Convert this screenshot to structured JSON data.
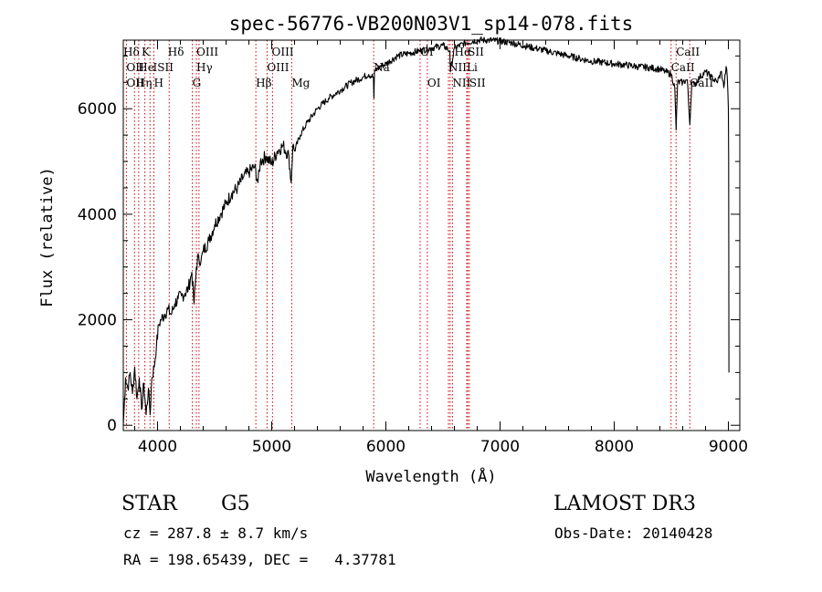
{
  "chart_data": {
    "type": "line",
    "title": "spec-56776-VB200N03V1_sp14-078.fits",
    "xlabel": "Wavelength (Å)",
    "ylabel": "Flux (relative)",
    "xlim": [
      3700,
      9100
    ],
    "ylim": [
      -100,
      7300
    ],
    "xticks": [
      4000,
      5000,
      6000,
      7000,
      8000,
      9000
    ],
    "yticks": [
      0,
      2000,
      4000,
      6000
    ],
    "x_minor_step": 200,
    "y_minor_step": 500,
    "grid": false,
    "line_color": "#000000",
    "marker_color": "#cc0000",
    "series": [
      {
        "x": [
          3700,
          3720,
          3740,
          3760,
          3780,
          3800,
          3820,
          3840,
          3860,
          3880,
          3900,
          3920,
          3935,
          3950,
          3970,
          3990,
          4010,
          4030,
          4060,
          4090,
          4120,
          4150,
          4180,
          4210,
          4240,
          4270,
          4300,
          4320,
          4340,
          4360,
          4380,
          4400,
          4450,
          4500,
          4550,
          4600,
          4650,
          4700,
          4750,
          4800,
          4850,
          4880,
          4900,
          4950,
          5000,
          5050,
          5100,
          5150,
          5170,
          5185,
          5200,
          5250,
          5300,
          5400,
          5500,
          5600,
          5700,
          5800,
          5850,
          5890,
          5895,
          5900,
          5950,
          6000,
          6100,
          6200,
          6300,
          6400,
          6500,
          6560,
          6565,
          6600,
          6700,
          6800,
          6900,
          7000,
          7100,
          7200,
          7300,
          7400,
          7500,
          7600,
          7700,
          7800,
          7900,
          8000,
          8100,
          8200,
          8300,
          8400,
          8450,
          8500,
          8530,
          8542,
          8555,
          8600,
          8640,
          8662,
          8680,
          8700,
          8750,
          8800,
          8850,
          8900,
          8940,
          8960,
          8980,
          8990,
          9000,
          9002,
          9005
        ],
        "y": [
          0,
          900,
          700,
          1000,
          600,
          1100,
          500,
          900,
          300,
          800,
          200,
          700,
          200,
          900,
          1100,
          1500,
          1900,
          2000,
          2100,
          2200,
          2100,
          2300,
          2400,
          2450,
          2500,
          2600,
          2900,
          2300,
          3000,
          3200,
          3100,
          3300,
          3500,
          3800,
          4000,
          4200,
          4400,
          4500,
          4700,
          4800,
          4900,
          4600,
          5000,
          5100,
          4950,
          5200,
          5300,
          5100,
          4600,
          5300,
          5200,
          5500,
          5700,
          6000,
          6200,
          6350,
          6500,
          6600,
          6650,
          6600,
          6200,
          6700,
          6800,
          6850,
          7000,
          7050,
          7100,
          7150,
          7200,
          7100,
          6700,
          7150,
          7250,
          7300,
          7300,
          7280,
          7250,
          7200,
          7150,
          7100,
          7050,
          7000,
          6950,
          6900,
          6880,
          6850,
          6830,
          6800,
          6780,
          6750,
          6700,
          6650,
          6400,
          5600,
          6500,
          6500,
          6550,
          5700,
          6500,
          6450,
          6600,
          6700,
          6600,
          6500,
          6700,
          6400,
          6800,
          6600,
          6000,
          5000,
          1000
        ]
      }
    ],
    "lines_top": [
      {
        "x": 3700,
        "row": 0,
        "label": "Hδ"
      },
      {
        "x": 3860,
        "row": 0,
        "label": "K"
      },
      {
        "x": 4090,
        "row": 0,
        "label": "Hδ"
      },
      {
        "x": 4340,
        "row": 0,
        "label": "OIII"
      },
      {
        "x": 5000,
        "row": 0,
        "label": "OIII"
      },
      {
        "x": 6300,
        "row": 0,
        "label": "OI"
      },
      {
        "x": 6600,
        "row": 0,
        "label": "Hα"
      },
      {
        "x": 6717,
        "row": 0,
        "label": "SII"
      },
      {
        "x": 8542,
        "row": 0,
        "label": "CaII"
      },
      {
        "x": 3727,
        "row": 1,
        "label": "OII"
      },
      {
        "x": 3830,
        "row": 1,
        "label": "He"
      },
      {
        "x": 3960,
        "row": 1,
        "label": "ISII"
      },
      {
        "x": 4340,
        "row": 1,
        "label": "Hγ"
      },
      {
        "x": 4959,
        "row": 1,
        "label": "OIII"
      },
      {
        "x": 5893,
        "row": 1,
        "label": "Na"
      },
      {
        "x": 6548,
        "row": 1,
        "label": "NII"
      },
      {
        "x": 6708,
        "row": 1,
        "label": "Li"
      },
      {
        "x": 8498,
        "row": 1,
        "label": "CaII"
      },
      {
        "x": 3727,
        "row": 2,
        "label": "OII"
      },
      {
        "x": 3810,
        "row": 2,
        "label": "Hη"
      },
      {
        "x": 3968,
        "row": 2,
        "label": "H"
      },
      {
        "x": 4305,
        "row": 2,
        "label": "G"
      },
      {
        "x": 4861,
        "row": 2,
        "label": "Hβ"
      },
      {
        "x": 5175,
        "row": 2,
        "label": "Mg"
      },
      {
        "x": 6363,
        "row": 2,
        "label": "OI"
      },
      {
        "x": 6583,
        "row": 2,
        "label": "NII"
      },
      {
        "x": 6731,
        "row": 2,
        "label": "SII"
      },
      {
        "x": 8662,
        "row": 2,
        "label": "CaII"
      }
    ],
    "line_positions": [
      3727,
      3798,
      3835,
      3889,
      3934,
      3968,
      4102,
      4305,
      4340,
      4363,
      4861,
      4959,
      5007,
      5175,
      5893,
      6300,
      6363,
      6548,
      6563,
      6583,
      6708,
      6717,
      6731,
      8498,
      8542,
      8662
    ]
  },
  "info": {
    "class": "STAR",
    "subclass": "G5",
    "survey": "LAMOST DR3",
    "cz": "cz = 287.8 ± 8.7 km/s",
    "obs_date": "Obs-Date: 20140428",
    "coords": "RA = 198.65439, DEC =   4.37781"
  }
}
